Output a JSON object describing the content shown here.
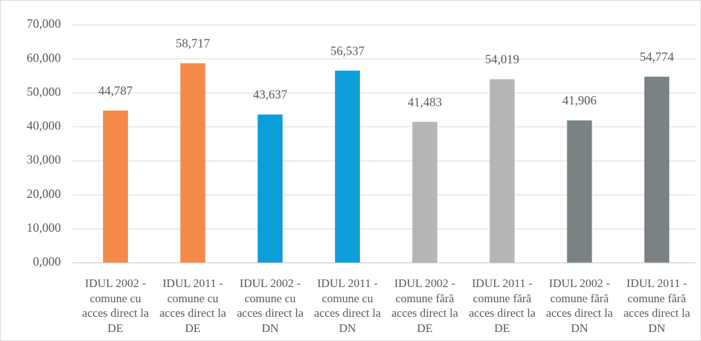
{
  "chart_data": {
    "type": "bar",
    "categories": [
      "IDUL 2002 - comune cu acces direct la DE",
      "IDUL 2011 - comune cu acces direct la DE",
      "IDUL 2002 - comune cu acces direct la DN",
      "IDUL 2011 - comune cu acces direct la DN",
      "IDUL 2002 - comune fără acces direct la DE",
      "IDUL 2011 - comune fără acces direct la DE",
      "IDUL 2002 - comune fără acces direct la DN",
      "IDUL 2011 - comune fără acces direct la DN"
    ],
    "values": [
      44.787,
      58.717,
      43.637,
      56.537,
      41.483,
      54.019,
      41.906,
      54.774
    ],
    "value_labels": [
      "44,787",
      "58,717",
      "43,637",
      "56,537",
      "41,483",
      "54,019",
      "41,906",
      "54,774"
    ],
    "colors": [
      "#f5894a",
      "#f5894a",
      "#0d9ddb",
      "#0d9ddb",
      "#b4b6b8",
      "#b4b6b8",
      "#7a8283",
      "#7a8283"
    ],
    "ylim": [
      0,
      70
    ],
    "yticks": [
      {
        "value": 0,
        "label": "0,000"
      },
      {
        "value": 10,
        "label": "10,000"
      },
      {
        "value": 20,
        "label": "20,000"
      },
      {
        "value": 30,
        "label": "30,000"
      },
      {
        "value": 40,
        "label": "40,000"
      },
      {
        "value": 50,
        "label": "50,000"
      },
      {
        "value": 60,
        "label": "60,000"
      },
      {
        "value": 70,
        "label": "70,000"
      }
    ],
    "grid": true
  }
}
